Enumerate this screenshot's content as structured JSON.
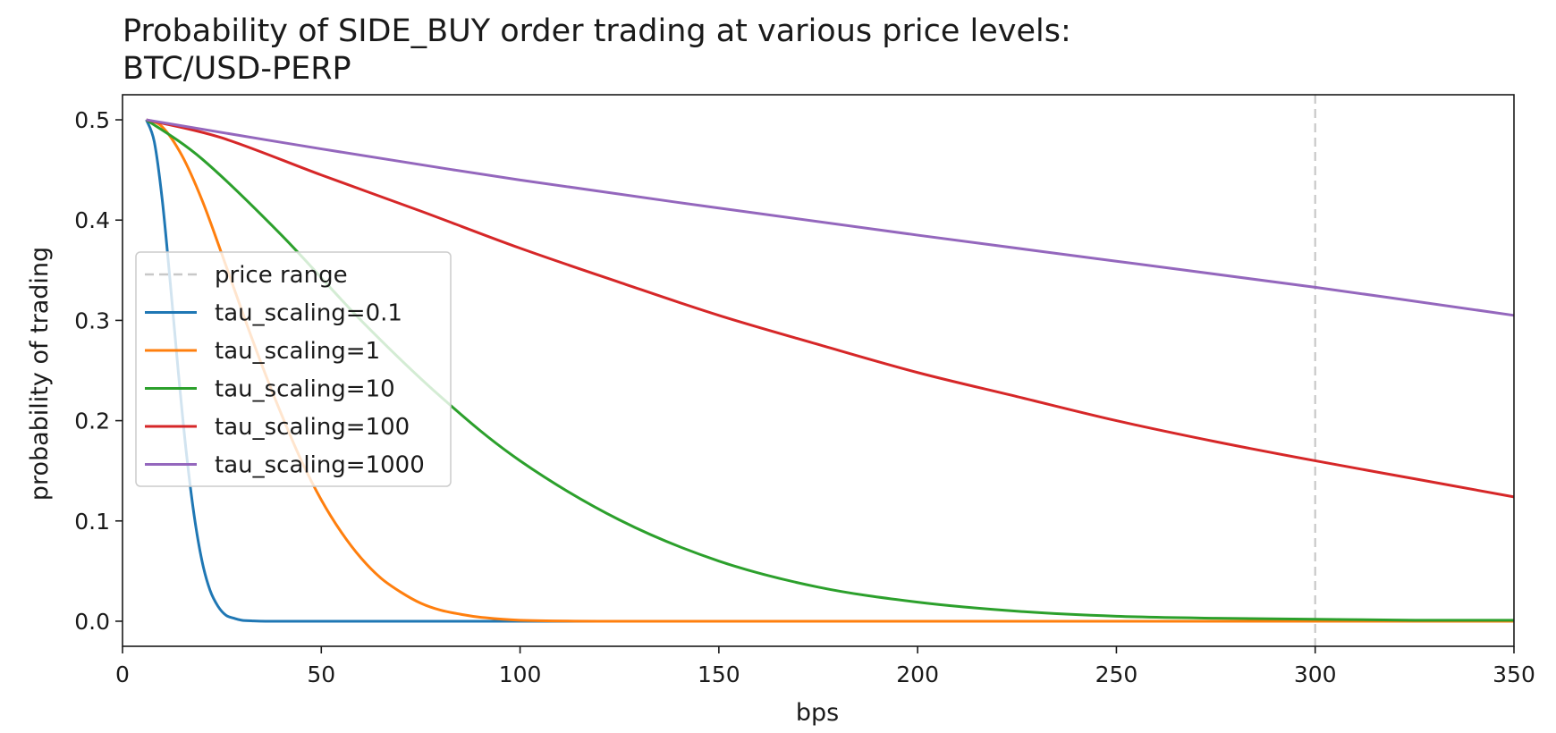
{
  "chart_data": {
    "type": "line",
    "title": "Probability of SIDE_BUY order trading at various price levels:",
    "subtitle": "BTC/USD-PERP",
    "xlabel": "bps",
    "ylabel": "probability of trading",
    "xlim": [
      0,
      350
    ],
    "ylim": [
      -0.025,
      0.525
    ],
    "xticks": [
      "0",
      "50",
      "100",
      "150",
      "200",
      "250",
      "300",
      "350"
    ],
    "xtick_values": [
      0,
      50,
      100,
      150,
      200,
      250,
      300,
      350
    ],
    "yticks": [
      "0.0",
      "0.1",
      "0.2",
      "0.3",
      "0.4",
      "0.5"
    ],
    "ytick_values": [
      0.0,
      0.1,
      0.2,
      0.3,
      0.4,
      0.5
    ],
    "grid": false,
    "legend_position": "center-left",
    "price_range": {
      "name": "price range",
      "x": 300,
      "color": "#c8c8c8"
    },
    "series": [
      {
        "name": "tau_scaling=0.1",
        "color": "#1f77b4",
        "x": [
          6,
          8,
          10,
          12,
          14,
          16,
          18,
          20,
          22,
          24,
          26,
          28,
          30,
          33,
          36,
          40,
          50,
          100,
          200,
          350
        ],
        "values": [
          0.5,
          0.478,
          0.42,
          0.338,
          0.25,
          0.17,
          0.106,
          0.06,
          0.031,
          0.015,
          0.006,
          0.003,
          0.001,
          0.0003,
          0.0,
          0.0,
          0.0,
          0.0,
          0.0,
          0.0
        ]
      },
      {
        "name": "tau_scaling=1",
        "color": "#ff7f0e",
        "x": [
          6,
          10,
          15,
          20,
          25,
          30,
          35,
          40,
          45,
          50,
          55,
          60,
          65,
          70,
          75,
          80,
          85,
          90,
          100,
          120,
          150,
          200,
          350
        ],
        "values": [
          0.5,
          0.493,
          0.464,
          0.42,
          0.366,
          0.31,
          0.256,
          0.206,
          0.16,
          0.121,
          0.089,
          0.063,
          0.043,
          0.029,
          0.018,
          0.011,
          0.007,
          0.004,
          0.001,
          0.0,
          0.0,
          0.0,
          0.0
        ]
      },
      {
        "name": "tau_scaling=10",
        "color": "#2ca02c",
        "x": [
          6,
          20,
          40,
          60,
          80,
          100,
          125,
          150,
          175,
          200,
          225,
          250,
          275,
          300,
          325,
          350
        ],
        "values": [
          0.5,
          0.461,
          0.385,
          0.3,
          0.224,
          0.16,
          0.101,
          0.06,
          0.034,
          0.019,
          0.01,
          0.005,
          0.003,
          0.002,
          0.001,
          0.001
        ]
      },
      {
        "name": "tau_scaling=100",
        "color": "#d62728",
        "x": [
          6,
          25,
          50,
          75,
          100,
          125,
          150,
          175,
          200,
          225,
          250,
          275,
          300,
          325,
          350
        ],
        "values": [
          0.5,
          0.482,
          0.445,
          0.409,
          0.372,
          0.338,
          0.305,
          0.276,
          0.248,
          0.224,
          0.2,
          0.179,
          0.16,
          0.142,
          0.124
        ]
      },
      {
        "name": "tau_scaling=1000",
        "color": "#9467bd",
        "x": [
          6,
          50,
          100,
          150,
          200,
          250,
          300,
          350
        ],
        "values": [
          0.5,
          0.471,
          0.44,
          0.412,
          0.385,
          0.359,
          0.333,
          0.305
        ]
      }
    ]
  }
}
